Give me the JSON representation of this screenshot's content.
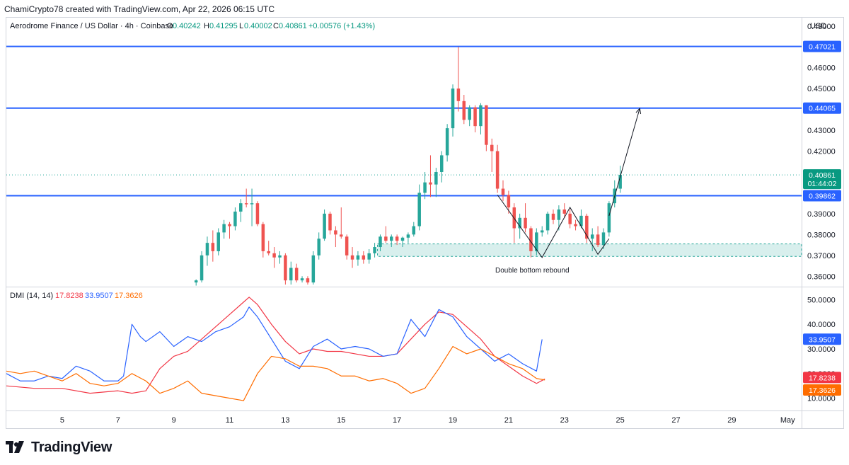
{
  "credit": "ChamiCrypto78 created with TradingView.com, Apr 22, 2026 06:15 UTC",
  "brand": "TradingView",
  "logo_icon": "tradingview-logo-icon",
  "colors": {
    "up": "#26a69a",
    "down": "#ef5350",
    "level": "#2962ff",
    "di_plus": "#2962ff",
    "di_minus": "#ff6d00",
    "adx": "#f23645",
    "zone": "#26a69a",
    "price_badge": "#089981"
  },
  "header": {
    "symbol": "Aerodrome Finance / US Dollar · 4h · Coinbase",
    "open_label": "O",
    "open": "0.40242",
    "high_label": "H",
    "high": "0.41295",
    "low_label": "L",
    "low": "0.40002",
    "close_label": "C",
    "close": "0.40861",
    "change": "+0.00576 (+1.43%)"
  },
  "price_axis": {
    "currency": "USD",
    "ticks": [
      "0.48000",
      "0.46000",
      "0.45000",
      "0.43000",
      "0.42000",
      "0.39000",
      "0.38000",
      "0.37000",
      "0.36000"
    ],
    "level_badges": [
      "0.47021",
      "0.44065",
      "0.39862"
    ],
    "last_price": "0.40861",
    "countdown": "01:44:02"
  },
  "dmi_axis": {
    "ticks": [
      "50.0000",
      "40.0000",
      "30.0000",
      "10.0000"
    ],
    "faded_tick": "20.0000",
    "badges": {
      "di_plus": "33.9507",
      "adx": "17.8238",
      "di_minus": "17.3626"
    }
  },
  "time_axis": [
    "5",
    "7",
    "9",
    "11",
    "13",
    "15",
    "17",
    "19",
    "21",
    "23",
    "25",
    "27",
    "29",
    "May"
  ],
  "annotation": "Double bottom rebound",
  "dmi_legend": {
    "label": "DMI (14, 14)",
    "adx": "17.8238",
    "di_plus": "33.9507",
    "di_minus": "17.3626"
  },
  "chart_data": [
    {
      "type": "candlestick",
      "title": "Aerodrome Finance / US Dollar · 4h · Coinbase",
      "ylabel": "USD",
      "ylim": [
        0.355,
        0.484
      ],
      "x_range": [
        "Apr 3",
        "May 1"
      ],
      "levels": [
        0.47021,
        0.44065,
        0.39862
      ],
      "support_zone": [
        0.3695,
        0.3755
      ],
      "last_price": 0.40861,
      "pattern": "double bottom",
      "annotation": "Double bottom rebound",
      "arrow": {
        "from": [
          22.1,
          0.389
        ],
        "to": [
          23.2,
          0.4405
        ]
      },
      "candles": [
        {
          "t": 9.8,
          "o": 0.357,
          "h": 0.3585,
          "l": 0.3555,
          "c": 0.358
        },
        {
          "t": 10.0,
          "o": 0.358,
          "h": 0.372,
          "l": 0.357,
          "c": 0.37
        },
        {
          "t": 10.2,
          "o": 0.37,
          "h": 0.379,
          "l": 0.365,
          "c": 0.376
        },
        {
          "t": 10.4,
          "o": 0.376,
          "h": 0.382,
          "l": 0.367,
          "c": 0.372
        },
        {
          "t": 10.6,
          "o": 0.372,
          "h": 0.383,
          "l": 0.37,
          "c": 0.381
        },
        {
          "t": 10.8,
          "o": 0.381,
          "h": 0.387,
          "l": 0.378,
          "c": 0.385
        },
        {
          "t": 11.0,
          "o": 0.385,
          "h": 0.386,
          "l": 0.378,
          "c": 0.384
        },
        {
          "t": 11.2,
          "o": 0.384,
          "h": 0.393,
          "l": 0.382,
          "c": 0.391
        },
        {
          "t": 11.4,
          "o": 0.391,
          "h": 0.397,
          "l": 0.386,
          "c": 0.395
        },
        {
          "t": 11.6,
          "o": 0.395,
          "h": 0.402,
          "l": 0.393,
          "c": 0.3945
        },
        {
          "t": 11.8,
          "o": 0.3945,
          "h": 0.402,
          "l": 0.384,
          "c": 0.395
        },
        {
          "t": 12.0,
          "o": 0.395,
          "h": 0.396,
          "l": 0.384,
          "c": 0.385
        },
        {
          "t": 12.2,
          "o": 0.385,
          "h": 0.386,
          "l": 0.369,
          "c": 0.372
        },
        {
          "t": 12.4,
          "o": 0.372,
          "h": 0.377,
          "l": 0.37,
          "c": 0.371
        },
        {
          "t": 12.6,
          "o": 0.371,
          "h": 0.374,
          "l": 0.364,
          "c": 0.369
        },
        {
          "t": 12.8,
          "o": 0.369,
          "h": 0.372,
          "l": 0.366,
          "c": 0.37
        },
        {
          "t": 13.0,
          "o": 0.37,
          "h": 0.371,
          "l": 0.356,
          "c": 0.358
        },
        {
          "t": 13.2,
          "o": 0.358,
          "h": 0.367,
          "l": 0.356,
          "c": 0.364
        },
        {
          "t": 13.4,
          "o": 0.364,
          "h": 0.366,
          "l": 0.357,
          "c": 0.358
        },
        {
          "t": 13.6,
          "o": 0.358,
          "h": 0.36,
          "l": 0.357,
          "c": 0.359
        },
        {
          "t": 13.8,
          "o": 0.359,
          "h": 0.36,
          "l": 0.356,
          "c": 0.357
        },
        {
          "t": 14.0,
          "o": 0.357,
          "h": 0.372,
          "l": 0.356,
          "c": 0.37
        },
        {
          "t": 14.2,
          "o": 0.37,
          "h": 0.381,
          "l": 0.368,
          "c": 0.378
        },
        {
          "t": 14.4,
          "o": 0.378,
          "h": 0.392,
          "l": 0.377,
          "c": 0.39
        },
        {
          "t": 14.6,
          "o": 0.39,
          "h": 0.391,
          "l": 0.38,
          "c": 0.382
        },
        {
          "t": 14.8,
          "o": 0.382,
          "h": 0.384,
          "l": 0.374,
          "c": 0.38
        },
        {
          "t": 15.0,
          "o": 0.38,
          "h": 0.393,
          "l": 0.378,
          "c": 0.379
        },
        {
          "t": 15.2,
          "o": 0.379,
          "h": 0.38,
          "l": 0.368,
          "c": 0.37
        },
        {
          "t": 15.4,
          "o": 0.37,
          "h": 0.374,
          "l": 0.364,
          "c": 0.368
        },
        {
          "t": 15.6,
          "o": 0.368,
          "h": 0.372,
          "l": 0.365,
          "c": 0.37
        },
        {
          "t": 15.8,
          "o": 0.37,
          "h": 0.372,
          "l": 0.366,
          "c": 0.368
        },
        {
          "t": 16.0,
          "o": 0.368,
          "h": 0.373,
          "l": 0.366,
          "c": 0.371
        },
        {
          "t": 16.2,
          "o": 0.371,
          "h": 0.376,
          "l": 0.369,
          "c": 0.374
        },
        {
          "t": 16.4,
          "o": 0.374,
          "h": 0.38,
          "l": 0.372,
          "c": 0.379
        },
        {
          "t": 16.6,
          "o": 0.379,
          "h": 0.384,
          "l": 0.376,
          "c": 0.377
        },
        {
          "t": 16.8,
          "o": 0.377,
          "h": 0.38,
          "l": 0.374,
          "c": 0.379
        },
        {
          "t": 17.0,
          "o": 0.379,
          "h": 0.38,
          "l": 0.375,
          "c": 0.377
        },
        {
          "t": 17.2,
          "o": 0.377,
          "h": 0.379,
          "l": 0.374,
          "c": 0.3785
        },
        {
          "t": 17.4,
          "o": 0.3785,
          "h": 0.381,
          "l": 0.376,
          "c": 0.38
        },
        {
          "t": 17.6,
          "o": 0.38,
          "h": 0.386,
          "l": 0.379,
          "c": 0.384
        },
        {
          "t": 17.8,
          "o": 0.384,
          "h": 0.404,
          "l": 0.382,
          "c": 0.4
        },
        {
          "t": 18.0,
          "o": 0.4,
          "h": 0.41,
          "l": 0.397,
          "c": 0.405
        },
        {
          "t": 18.2,
          "o": 0.405,
          "h": 0.418,
          "l": 0.398,
          "c": 0.404
        },
        {
          "t": 18.4,
          "o": 0.404,
          "h": 0.412,
          "l": 0.398,
          "c": 0.41
        },
        {
          "t": 18.6,
          "o": 0.41,
          "h": 0.42,
          "l": 0.405,
          "c": 0.418
        },
        {
          "t": 18.8,
          "o": 0.418,
          "h": 0.433,
          "l": 0.415,
          "c": 0.431
        },
        {
          "t": 19.0,
          "o": 0.431,
          "h": 0.452,
          "l": 0.427,
          "c": 0.45
        },
        {
          "t": 19.2,
          "o": 0.45,
          "h": 0.47,
          "l": 0.439,
          "c": 0.444
        },
        {
          "t": 19.4,
          "o": 0.444,
          "h": 0.447,
          "l": 0.433,
          "c": 0.435
        },
        {
          "t": 19.6,
          "o": 0.435,
          "h": 0.442,
          "l": 0.432,
          "c": 0.441
        },
        {
          "t": 19.8,
          "o": 0.441,
          "h": 0.442,
          "l": 0.429,
          "c": 0.432
        },
        {
          "t": 20.0,
          "o": 0.432,
          "h": 0.443,
          "l": 0.428,
          "c": 0.442
        },
        {
          "t": 20.2,
          "o": 0.442,
          "h": 0.442,
          "l": 0.42,
          "c": 0.423
        },
        {
          "t": 20.4,
          "o": 0.423,
          "h": 0.426,
          "l": 0.41,
          "c": 0.42
        },
        {
          "t": 20.6,
          "o": 0.42,
          "h": 0.423,
          "l": 0.4,
          "c": 0.402
        },
        {
          "t": 20.8,
          "o": 0.402,
          "h": 0.406,
          "l": 0.396,
          "c": 0.399
        },
        {
          "t": 21.0,
          "o": 0.399,
          "h": 0.401,
          "l": 0.39,
          "c": 0.393
        },
        {
          "t": 21.2,
          "o": 0.393,
          "h": 0.395,
          "l": 0.376,
          "c": 0.383
        },
        {
          "t": 21.4,
          "o": 0.383,
          "h": 0.39,
          "l": 0.378,
          "c": 0.388
        },
        {
          "t": 21.6,
          "o": 0.388,
          "h": 0.395,
          "l": 0.381,
          "c": 0.383
        },
        {
          "t": 21.8,
          "o": 0.383,
          "h": 0.384,
          "l": 0.369,
          "c": 0.372
        },
        {
          "t": 22.0,
          "o": 0.372,
          "h": 0.383,
          "l": 0.37,
          "c": 0.381
        },
        {
          "t": 22.2,
          "o": 0.381,
          "h": 0.384,
          "l": 0.379,
          "c": 0.382
        },
        {
          "t": 22.4,
          "o": 0.382,
          "h": 0.391,
          "l": 0.38,
          "c": 0.39
        },
        {
          "t": 22.6,
          "o": 0.39,
          "h": 0.392,
          "l": 0.385,
          "c": 0.387
        },
        {
          "t": 22.8,
          "o": 0.387,
          "h": 0.394,
          "l": 0.382,
          "c": 0.392
        },
        {
          "t": 23.0,
          "o": 0.392,
          "h": 0.395,
          "l": 0.388,
          "c": 0.39
        },
        {
          "t": 23.2,
          "o": 0.39,
          "h": 0.392,
          "l": 0.383,
          "c": 0.385
        },
        {
          "t": 23.4,
          "o": 0.385,
          "h": 0.387,
          "l": 0.382,
          "c": 0.384
        },
        {
          "t": 23.6,
          "o": 0.384,
          "h": 0.392,
          "l": 0.383,
          "c": 0.389
        },
        {
          "t": 23.8,
          "o": 0.389,
          "h": 0.39,
          "l": 0.376,
          "c": 0.378
        },
        {
          "t": 24.0,
          "o": 0.378,
          "h": 0.383,
          "l": 0.372,
          "c": 0.38
        },
        {
          "t": 24.2,
          "o": 0.38,
          "h": 0.384,
          "l": 0.374,
          "c": 0.375
        },
        {
          "t": 24.4,
          "o": 0.375,
          "h": 0.383,
          "l": 0.373,
          "c": 0.381
        },
        {
          "t": 24.6,
          "o": 0.381,
          "h": 0.396,
          "l": 0.379,
          "c": 0.395
        },
        {
          "t": 24.8,
          "o": 0.395,
          "h": 0.406,
          "l": 0.393,
          "c": 0.402
        },
        {
          "t": 25.0,
          "o": 0.402,
          "h": 0.413,
          "l": 0.4,
          "c": 0.4086
        }
      ]
    },
    {
      "type": "line",
      "title": "DMI (14, 14)",
      "ylim": [
        5,
        55
      ],
      "x_range": [
        "Apr 3",
        "May 1"
      ],
      "series": [
        {
          "name": "ADX",
          "color": "#f23645",
          "x": [
            3,
            4,
            5,
            6,
            7,
            7.5,
            8,
            8.5,
            9,
            9.5,
            10,
            10.5,
            11,
            11.5,
            11.7,
            12,
            12.5,
            13,
            13.5,
            14,
            14.5,
            15,
            15.5,
            16,
            16.5,
            17,
            17.5,
            18,
            18.5,
            19,
            19.5,
            20,
            20.5,
            21,
            21.5,
            22,
            22.3
          ],
          "y": [
            15,
            14,
            14,
            12,
            13,
            12,
            13,
            22,
            27,
            29,
            34,
            39,
            44,
            49,
            51,
            48,
            40,
            33,
            28,
            30,
            29,
            29,
            28,
            27,
            27,
            28,
            34,
            40,
            45,
            44,
            39,
            34,
            27,
            23,
            19,
            16,
            17.8
          ]
        },
        {
          "name": "+DI",
          "color": "#2962ff",
          "x": [
            3,
            3.5,
            4,
            4.5,
            5,
            5.5,
            6,
            6.5,
            7,
            7.2,
            7.5,
            7.8,
            8,
            8.5,
            9,
            9.5,
            10,
            10.5,
            11,
            11.5,
            11.7,
            12,
            12.5,
            13,
            13.5,
            14,
            14.5,
            15,
            15.5,
            16,
            16.5,
            17,
            17.5,
            18,
            18.5,
            19,
            19.5,
            20,
            20.5,
            21,
            21.5,
            22,
            22.2
          ],
          "y": [
            20,
            17,
            17,
            19,
            18,
            23,
            21,
            17,
            17,
            19,
            40,
            35,
            33,
            37,
            31,
            35,
            33,
            37,
            39,
            43,
            47,
            43,
            34,
            25,
            22,
            31,
            34,
            30,
            31,
            30,
            27,
            28,
            42,
            35,
            46,
            43,
            35,
            30,
            25,
            28,
            24,
            21,
            33.9
          ]
        },
        {
          "name": "-DI",
          "color": "#ff6d00",
          "x": [
            3,
            3.5,
            4,
            4.5,
            5,
            5.5,
            6,
            6.5,
            7,
            7.5,
            8,
            8.5,
            9,
            9.5,
            10,
            10.5,
            11,
            11.5,
            12,
            12.5,
            13,
            13.5,
            14,
            14.5,
            15,
            15.5,
            16,
            16.5,
            17,
            17.5,
            18,
            18.5,
            19,
            19.5,
            20,
            20.5,
            21,
            21.5,
            22,
            22.3
          ],
          "y": [
            21,
            20,
            21,
            19,
            17,
            20,
            16,
            15,
            16,
            20,
            17,
            12,
            14,
            17,
            12,
            11,
            10,
            9,
            20,
            27,
            26,
            23,
            23,
            22,
            19,
            19,
            17,
            18,
            16,
            12,
            14,
            22,
            31,
            28,
            30,
            27,
            24,
            22,
            18,
            17.4
          ]
        }
      ]
    }
  ]
}
